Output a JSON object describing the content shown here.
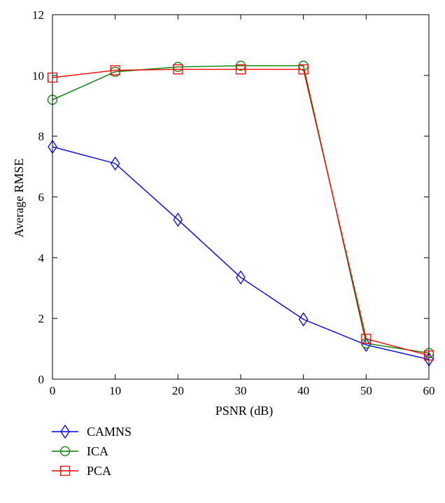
{
  "chart_data": {
    "type": "line",
    "title": "",
    "xlabel": "PSNR (dB)",
    "ylabel": "Average RMSE",
    "xlim": [
      0,
      60
    ],
    "ylim": [
      0,
      12
    ],
    "xticks": [
      0,
      10,
      20,
      30,
      40,
      50,
      60
    ],
    "yticks": [
      0,
      2,
      4,
      6,
      8,
      10,
      12
    ],
    "grid": false,
    "legend_position": "bottom-left, below the plot",
    "x": [
      0,
      10,
      20,
      30,
      40,
      50,
      60
    ],
    "series": [
      {
        "name": "CAMNS",
        "color": "#0000ff",
        "marker": "diamond",
        "values": [
          7.65,
          7.1,
          5.25,
          3.35,
          1.97,
          1.13,
          0.65
        ]
      },
      {
        "name": "ICA",
        "color": "#008000",
        "marker": "circle",
        "values": [
          9.2,
          10.12,
          10.28,
          10.32,
          10.32,
          1.18,
          0.86
        ]
      },
      {
        "name": "PCA",
        "color": "#ff0000",
        "marker": "square",
        "values": [
          9.93,
          10.17,
          10.2,
          10.2,
          10.2,
          1.33,
          0.78
        ]
      }
    ]
  }
}
